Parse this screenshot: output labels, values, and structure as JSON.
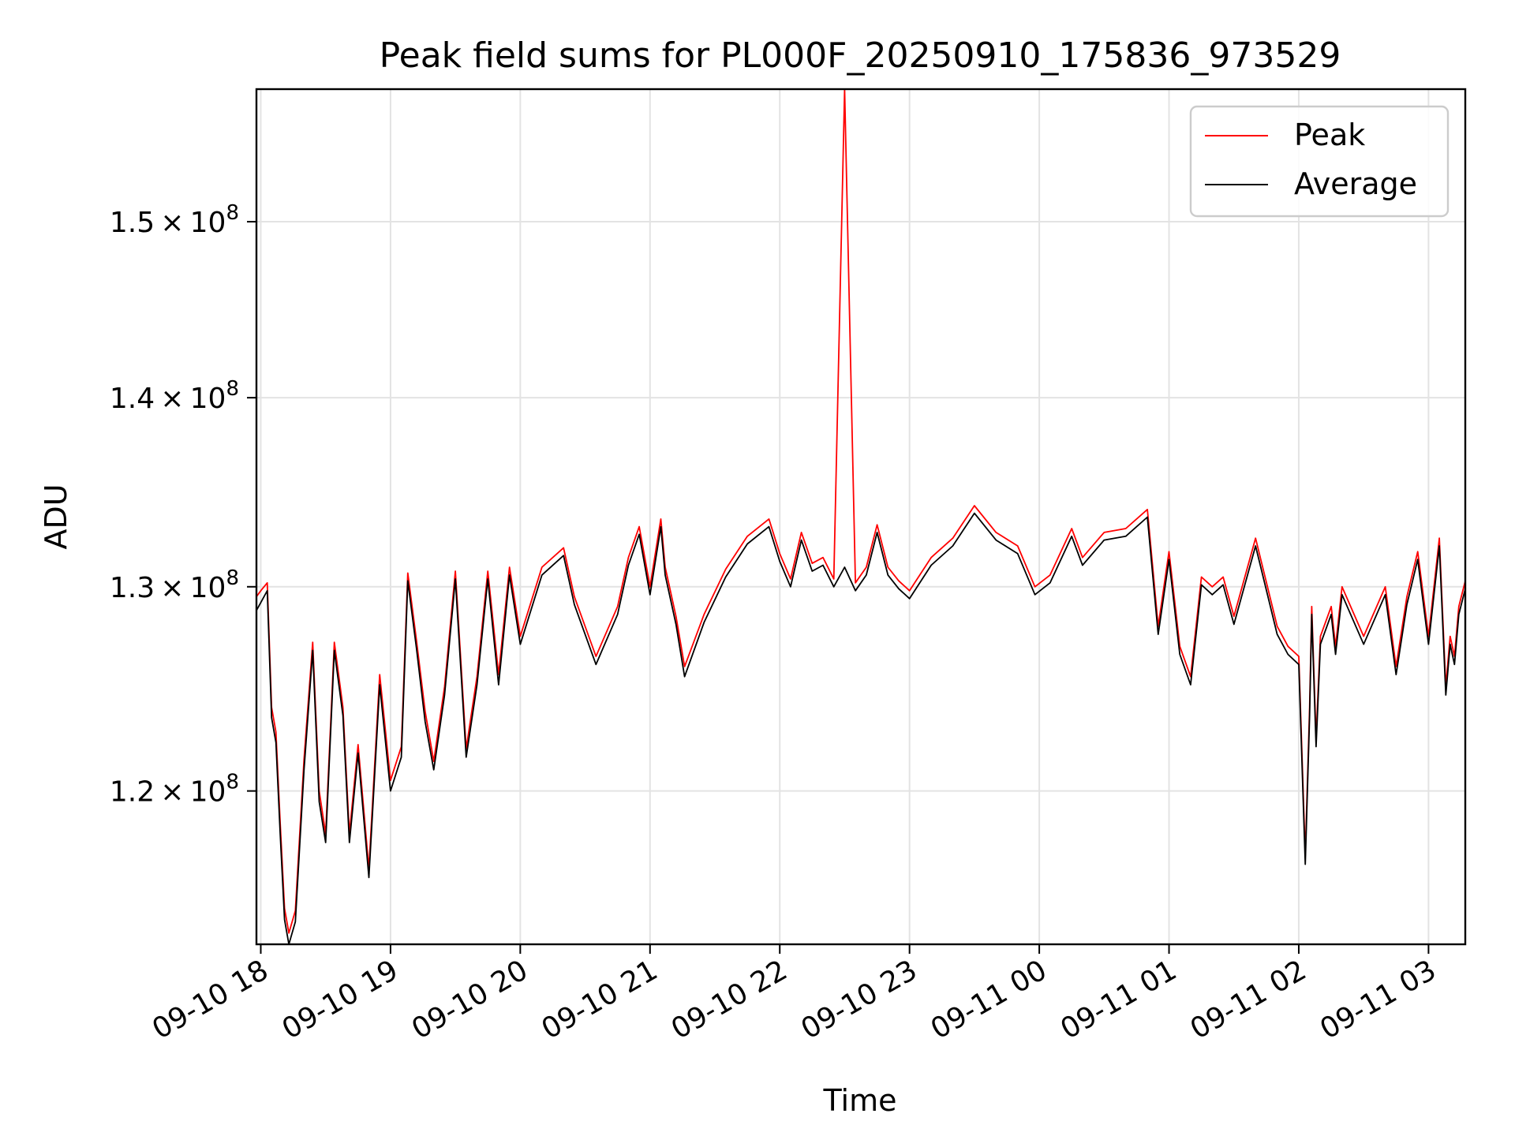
{
  "chart_data": {
    "type": "line",
    "title": "Peak field sums for PL000F_20250910_175836_973529",
    "xlabel": "Time",
    "ylabel": "ADU",
    "yscale": "log",
    "ylim": [
      113000000.0,
      158000000.0
    ],
    "xlim": [
      "2025-09-10T17:58",
      "2025-09-11T03:17"
    ],
    "grid": true,
    "legend_position": "top-right",
    "x_ticks": [
      "09-10 18",
      "09-10 19",
      "09-10 20",
      "09-10 21",
      "09-10 22",
      "09-10 23",
      "09-11 00",
      "09-11 01",
      "09-11 02",
      "09-11 03"
    ],
    "y_ticks": [
      {
        "value": 120000000.0,
        "mantissa": "1.2",
        "exponent": "8"
      },
      {
        "value": 130000000.0,
        "mantissa": "1.3",
        "exponent": "8"
      },
      {
        "value": 140000000.0,
        "mantissa": "1.4",
        "exponent": "8"
      },
      {
        "value": 150000000.0,
        "mantissa": "1.5",
        "exponent": "8"
      }
    ],
    "x": [
      "2025-09-10T17:58",
      "2025-09-10T18:00",
      "2025-09-10T18:03",
      "2025-09-10T18:05",
      "2025-09-10T18:07",
      "2025-09-10T18:09",
      "2025-09-10T18:11",
      "2025-09-10T18:13",
      "2025-09-10T18:16",
      "2025-09-10T18:20",
      "2025-09-10T18:24",
      "2025-09-10T18:27",
      "2025-09-10T18:30",
      "2025-09-10T18:34",
      "2025-09-10T18:38",
      "2025-09-10T18:41",
      "2025-09-10T18:45",
      "2025-09-10T18:50",
      "2025-09-10T18:55",
      "2025-09-10T19:00",
      "2025-09-10T19:05",
      "2025-09-10T19:08",
      "2025-09-10T19:12",
      "2025-09-10T19:16",
      "2025-09-10T19:20",
      "2025-09-10T19:25",
      "2025-09-10T19:30",
      "2025-09-10T19:35",
      "2025-09-10T19:40",
      "2025-09-10T19:45",
      "2025-09-10T19:50",
      "2025-09-10T19:55",
      "2025-09-10T20:00",
      "2025-09-10T20:10",
      "2025-09-10T20:20",
      "2025-09-10T20:25",
      "2025-09-10T20:35",
      "2025-09-10T20:45",
      "2025-09-10T20:50",
      "2025-09-10T20:55",
      "2025-09-10T21:00",
      "2025-09-10T21:05",
      "2025-09-10T21:07",
      "2025-09-10T21:12",
      "2025-09-10T21:16",
      "2025-09-10T21:25",
      "2025-09-10T21:35",
      "2025-09-10T21:45",
      "2025-09-10T21:55",
      "2025-09-10T22:00",
      "2025-09-10T22:05",
      "2025-09-10T22:10",
      "2025-09-10T22:15",
      "2025-09-10T22:20",
      "2025-09-10T22:25",
      "2025-09-10T22:30",
      "2025-09-10T22:35",
      "2025-09-10T22:40",
      "2025-09-10T22:45",
      "2025-09-10T22:50",
      "2025-09-10T22:55",
      "2025-09-10T23:00",
      "2025-09-10T23:10",
      "2025-09-10T23:20",
      "2025-09-10T23:30",
      "2025-09-10T23:40",
      "2025-09-10T23:50",
      "2025-09-10T23:58",
      "2025-09-11T00:05",
      "2025-09-11T00:15",
      "2025-09-11T00:20",
      "2025-09-11T00:30",
      "2025-09-11T00:40",
      "2025-09-11T00:50",
      "2025-09-11T00:55",
      "2025-09-11T01:00",
      "2025-09-11T01:05",
      "2025-09-11T01:10",
      "2025-09-11T01:15",
      "2025-09-11T01:20",
      "2025-09-11T01:25",
      "2025-09-11T01:30",
      "2025-09-11T01:40",
      "2025-09-11T01:50",
      "2025-09-11T01:55",
      "2025-09-11T02:00",
      "2025-09-11T02:03",
      "2025-09-11T02:05",
      "2025-09-11T02:06",
      "2025-09-11T02:08",
      "2025-09-11T02:10",
      "2025-09-11T02:15",
      "2025-09-11T02:17",
      "2025-09-11T02:20",
      "2025-09-11T02:30",
      "2025-09-11T02:40",
      "2025-09-11T02:45",
      "2025-09-11T02:50",
      "2025-09-11T02:55",
      "2025-09-11T03:00",
      "2025-09-11T03:05",
      "2025-09-11T03:08",
      "2025-09-11T03:10",
      "2025-09-11T03:12",
      "2025-09-11T03:14",
      "2025-09-11T03:17"
    ],
    "series": [
      {
        "name": "Peak",
        "color": "#ff0000",
        "values": [
          129500000.0,
          129800000.0,
          130200000.0,
          124000000.0,
          122800000.0,
          118500000.0,
          114600000.0,
          113500000.0,
          114500000.0,
          121500000.0,
          127200000.0,
          120000000.0,
          118000000.0,
          127200000.0,
          124000000.0,
          118000000.0,
          122200000.0,
          116400000.0,
          125600000.0,
          120500000.0,
          122100000.0,
          130700000.0,
          127300000.0,
          123800000.0,
          121400000.0,
          125000000.0,
          130800000.0,
          122000000.0,
          125500000.0,
          130800000.0,
          125600000.0,
          131000000.0,
          127500000.0,
          131000000.0,
          132000000.0,
          129500000.0,
          126500000.0,
          129000000.0,
          131500000.0,
          133100000.0,
          130000000.0,
          133500000.0,
          131000000.0,
          128500000.0,
          126000000.0,
          128600000.0,
          130900000.0,
          132600000.0,
          133500000.0,
          131700000.0,
          130400000.0,
          132800000.0,
          131200000.0,
          131500000.0,
          130400000.0,
          158000000.0,
          130200000.0,
          131000000.0,
          133200000.0,
          131000000.0,
          130300000.0,
          129800000.0,
          131500000.0,
          132500000.0,
          134200000.0,
          132800000.0,
          132100000.0,
          130000000.0,
          130600000.0,
          133000000.0,
          131500000.0,
          132800000.0,
          133000000.0,
          134000000.0,
          128000000.0,
          131800000.0,
          127000000.0,
          125500000.0,
          130500000.0,
          130000000.0,
          130500000.0,
          128500000.0,
          132500000.0,
          128000000.0,
          127000000.0,
          126500000.0,
          117000000.0,
          124000000.0,
          129000000.0,
          122500000.0,
          127500000.0,
          129000000.0,
          127000000.0,
          130000000.0,
          127500000.0,
          130000000.0,
          126000000.0,
          129500000.0,
          131800000.0,
          127500000.0,
          132500000.0,
          125000000.0,
          127500000.0,
          126500000.0,
          129000000.0,
          130300000.0
        ]
      },
      {
        "name": "Average",
        "color": "#000000",
        "values": [
          128800000.0,
          129200000.0,
          129800000.0,
          123500000.0,
          122300000.0,
          118000000.0,
          114100000.0,
          113000000.0,
          114000000.0,
          121000000.0,
          126800000.0,
          119500000.0,
          117600000.0,
          126800000.0,
          123600000.0,
          117600000.0,
          121800000.0,
          116000000.0,
          125100000.0,
          120000000.0,
          121600000.0,
          130300000.0,
          126900000.0,
          123300000.0,
          121000000.0,
          124600000.0,
          130400000.0,
          121600000.0,
          125100000.0,
          130400000.0,
          125100000.0,
          130600000.0,
          127100000.0,
          130600000.0,
          131600000.0,
          129100000.0,
          126100000.0,
          128600000.0,
          131100000.0,
          132700000.0,
          129600000.0,
          133100000.0,
          130600000.0,
          128100000.0,
          125500000.0,
          128200000.0,
          130500000.0,
          132200000.0,
          133100000.0,
          131300000.0,
          130000000.0,
          132400000.0,
          130800000.0,
          131100000.0,
          130000000.0,
          131000000.0,
          129800000.0,
          130600000.0,
          132800000.0,
          130600000.0,
          129900000.0,
          129400000.0,
          131100000.0,
          132100000.0,
          133800000.0,
          132400000.0,
          131700000.0,
          129600000.0,
          130200000.0,
          132600000.0,
          131100000.0,
          132400000.0,
          132600000.0,
          133600000.0,
          127600000.0,
          131400000.0,
          126600000.0,
          125100000.0,
          130100000.0,
          129600000.0,
          130100000.0,
          128100000.0,
          132100000.0,
          127600000.0,
          126600000.0,
          126100000.0,
          116600000.0,
          123600000.0,
          128600000.0,
          122100000.0,
          127100000.0,
          128600000.0,
          126600000.0,
          129600000.0,
          127100000.0,
          129600000.0,
          125600000.0,
          129100000.0,
          131400000.0,
          127100000.0,
          132100000.0,
          124600000.0,
          127100000.0,
          126100000.0,
          128600000.0,
          129900000.0
        ]
      }
    ]
  }
}
